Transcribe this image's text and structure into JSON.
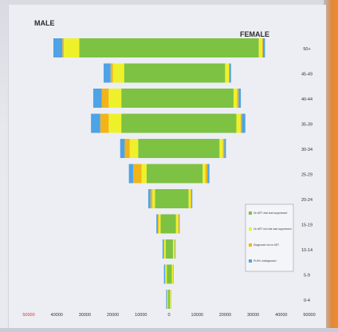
{
  "chart_data": {
    "type": "bar",
    "orientation": "horizontal",
    "stacked": true,
    "title": "",
    "left_label": "MALE",
    "right_label": "FEMALE",
    "xlim": [
      -50000,
      50000
    ],
    "x_ticks": [
      -50000,
      -40000,
      -30000,
      -20000,
      -10000,
      0,
      10000,
      20000,
      30000,
      40000,
      50000
    ],
    "x_tick_labels": [
      "50000",
      "40000",
      "30000",
      "20000",
      "10000",
      "0",
      "10000",
      "20000",
      "30000",
      "40000",
      "50000"
    ],
    "categories": [
      "50+",
      "45-49",
      "40-44",
      "35-39",
      "30-34",
      "25-29",
      "20-24",
      "15-19",
      "10-14",
      "5-9",
      "0-4"
    ],
    "series": [
      {
        "name": "On ART viral load suppressed",
        "color": "#7dc242",
        "male": [
          -32000,
          -16000,
          -17000,
          -17000,
          -11000,
          -8000,
          -5000,
          -3000,
          -1200,
          -800,
          -300
        ],
        "female": [
          32000,
          20000,
          23000,
          24000,
          18000,
          12000,
          7000,
          2500,
          1400,
          1000,
          300
        ]
      },
      {
        "name": "On ART not viral load suppressed",
        "color": "#eef12a",
        "male": [
          -5500,
          -4000,
          -4500,
          -4500,
          -3000,
          -1800,
          -900,
          -700,
          -500,
          -500,
          -300
        ],
        "female": [
          1200,
          1300,
          1300,
          1500,
          1200,
          1000,
          700,
          800,
          600,
          500,
          300
        ]
      },
      {
        "name": "Diagnosed not on ART",
        "color": "#f2b418",
        "male": [
          -500,
          -800,
          -2500,
          -3000,
          -1800,
          -3000,
          -700,
          -300,
          -200,
          -100,
          -100
        ],
        "female": [
          300,
          300,
          500,
          500,
          500,
          700,
          300,
          300,
          100,
          100,
          50
        ]
      },
      {
        "name": "PLHIV undiagnosed",
        "color": "#4da3e6",
        "male": [
          -3200,
          -2500,
          -3000,
          -3300,
          -1600,
          -1500,
          -800,
          -500,
          -400,
          -400,
          -300
        ],
        "female": [
          700,
          500,
          800,
          1200,
          600,
          700,
          300,
          200,
          200,
          100,
          100
        ]
      }
    ],
    "legend": {
      "placement": "right",
      "entries": [
        "On ART viral load suppressed",
        "On ART not viral load suppressed",
        "Diagnosed not on ART",
        "PLHIV undiagnosed"
      ]
    },
    "grid": false
  }
}
